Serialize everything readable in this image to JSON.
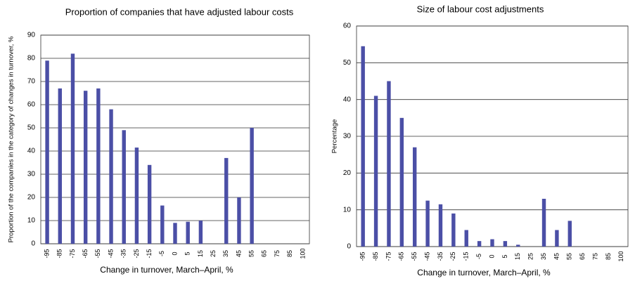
{
  "chart_data": [
    {
      "type": "bar",
      "title": "Proportion of companies that have adjusted labour costs",
      "x_label": "Change in turnover, March–April, %",
      "y_label": "Proportion of the companies in the category of changes in turnover, %",
      "categories": [
        "-95",
        "-85",
        "-75",
        "-65",
        "-55",
        "-45",
        "-35",
        "-25",
        "-15",
        "-5",
        "0",
        "5",
        "15",
        "25",
        "35",
        "45",
        "55",
        "65",
        "75",
        "85",
        "100"
      ],
      "values": [
        79,
        67,
        82,
        66,
        67,
        58,
        49,
        41.5,
        34,
        16.5,
        9,
        9.5,
        10,
        null,
        37,
        20,
        50,
        null,
        null,
        null,
        null
      ],
      "color": "#4b4fa6",
      "ylim": [
        0,
        90
      ],
      "yticks": [
        0,
        10,
        20,
        30,
        40,
        50,
        60,
        70,
        80,
        90
      ],
      "grid": true
    },
    {
      "type": "bar",
      "title": "Size of labour cost adjustments",
      "x_label": "Change in turnover, March–April, %",
      "y_label": "Percentage",
      "categories": [
        "-95",
        "-85",
        "-75",
        "-65",
        "-55",
        "-45",
        "-35",
        "-25",
        "-15",
        "-5",
        "0",
        "5",
        "15",
        "25",
        "35",
        "45",
        "55",
        "65",
        "75",
        "85",
        "100"
      ],
      "values": [
        54.5,
        41,
        45,
        35,
        27,
        12.5,
        11.5,
        9,
        4.5,
        1.5,
        2,
        1.5,
        0.5,
        null,
        13,
        4.5,
        7,
        null,
        null,
        null,
        null
      ],
      "color": "#4b4fa6",
      "ylim": [
        0,
        60
      ],
      "yticks": [
        0,
        10,
        20,
        30,
        40,
        50,
        60
      ],
      "grid": true
    }
  ]
}
